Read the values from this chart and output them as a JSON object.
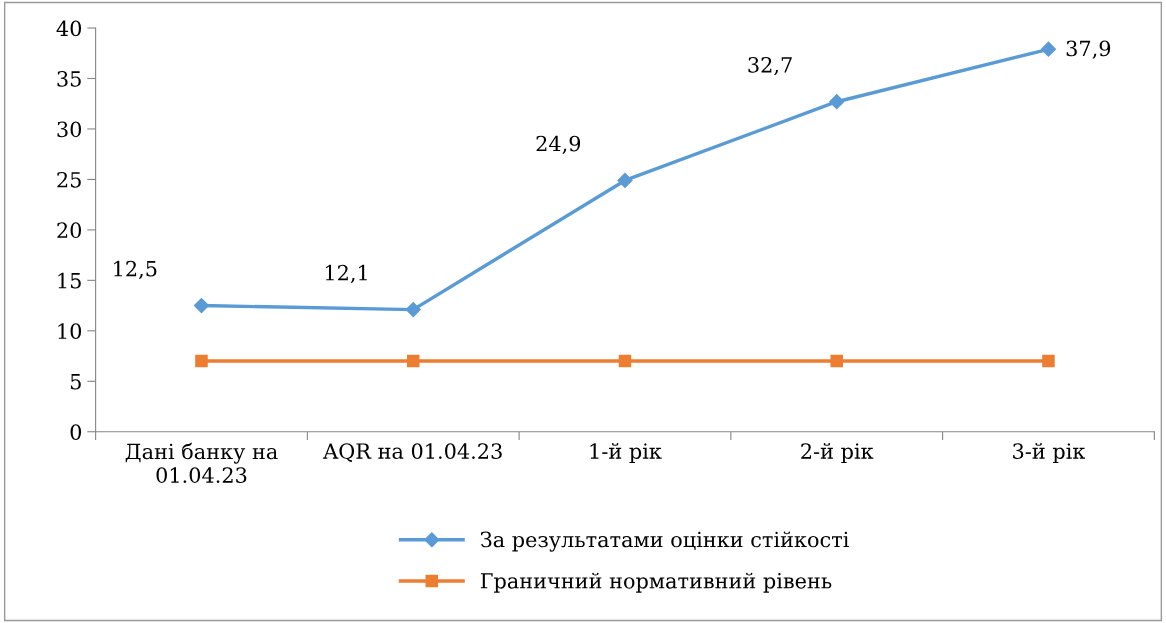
{
  "chart_data": {
    "type": "line",
    "categories": [
      "Дані банку на\n01.04.23",
      "AQR на 01.04.23",
      "1-й рік",
      "2-й рік",
      "3-й рік"
    ],
    "series": [
      {
        "name": "За результатами оцінки стійкості",
        "color": "#5b9bd5",
        "marker": "diamond",
        "values": [
          12.5,
          12.1,
          24.9,
          32.7,
          37.9
        ],
        "value_labels": [
          "12,5",
          "12,1",
          "24,9",
          "32,7",
          "37,9"
        ]
      },
      {
        "name": "Граничний нормативний рівень",
        "color": "#ed7d31",
        "marker": "square",
        "values": [
          7,
          7,
          7,
          7,
          7
        ]
      }
    ],
    "ylim": [
      0,
      40
    ],
    "yticks": [
      0,
      5,
      10,
      15,
      20,
      25,
      30,
      35,
      40
    ],
    "grid": false,
    "legend": "bottom",
    "line_style": "solid"
  }
}
